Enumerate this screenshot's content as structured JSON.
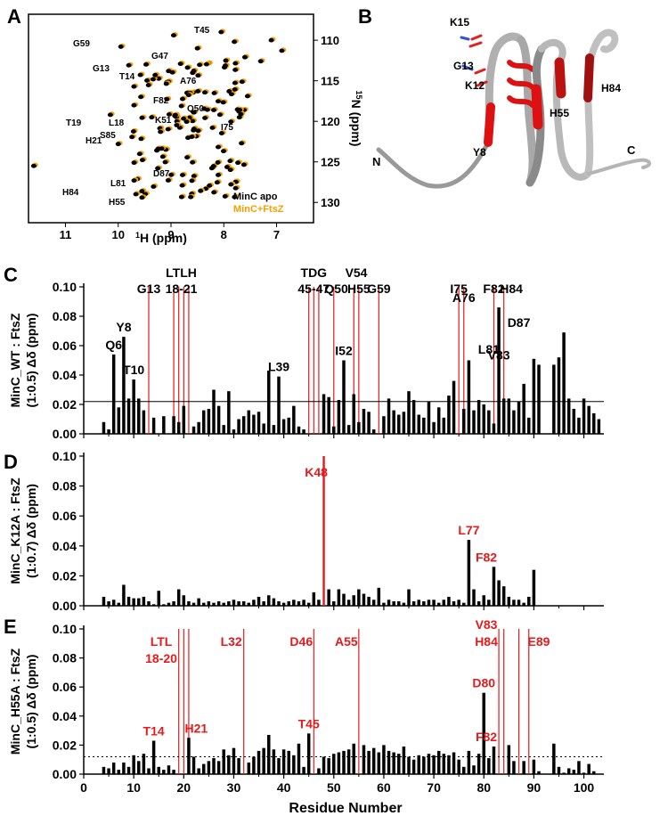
{
  "panels": {
    "A": {
      "letter": "A",
      "xlabel_sup": "1",
      "xlabel_rest": "H (ppm)",
      "ylabel_sup": "15",
      "ylabel_rest": "N (ppm)",
      "x_ticks": [
        "11",
        "10",
        "9",
        "8",
        "7"
      ],
      "y_ticks": [
        "110",
        "115",
        "120",
        "125",
        "130"
      ],
      "legend": [
        "MinC apo",
        "MinC+FtsZ"
      ],
      "colors": {
        "apo": "#000000",
        "ftsz": "#f5a000"
      },
      "labels": [
        "T45",
        "G59",
        "G47",
        "G13",
        "T14",
        "A76",
        "F82",
        "Q50",
        "T19",
        "L18",
        "K51",
        "I75",
        "S85",
        "H21",
        "D87",
        "L81",
        "H84",
        "H55"
      ]
    },
    "B": {
      "letter": "B",
      "labels": [
        "K15",
        "G13",
        "K12",
        "H84",
        "H55",
        "Y8",
        "N",
        "C"
      ]
    }
  },
  "chart_data": [
    {
      "type": "bar",
      "panel": "C",
      "ylabel_lines": [
        "MinC_WT : FtsZ",
        "(1:0.5) Δδ (ppm)"
      ],
      "ylim": [
        0,
        0.1
      ],
      "yticks": [
        "0.00",
        "0.02",
        "0.04",
        "0.06",
        "0.08",
        "0.10"
      ],
      "threshold": 0.022,
      "threshold_style": "solid",
      "residues": [
        4,
        5,
        6,
        7,
        8,
        9,
        10,
        11,
        12,
        14,
        16,
        18,
        19,
        20,
        22,
        23,
        24,
        25,
        26,
        27,
        28,
        29,
        30,
        31,
        32,
        33,
        34,
        35,
        36,
        37,
        38,
        39,
        40,
        41,
        42,
        43,
        44,
        48,
        49,
        50,
        51,
        52,
        53,
        54,
        55,
        56,
        57,
        58,
        60,
        61,
        62,
        63,
        64,
        65,
        66,
        67,
        68,
        69,
        70,
        71,
        72,
        73,
        74,
        76,
        77,
        78,
        79,
        80,
        81,
        82,
        83,
        84,
        85,
        86,
        87,
        88,
        89,
        90,
        91,
        94,
        95,
        96,
        97,
        98,
        99,
        100,
        101,
        102,
        103
      ],
      "values": [
        0.008,
        0.003,
        0.054,
        0.018,
        0.066,
        0.024,
        0.037,
        0.024,
        0.016,
        0.011,
        0.012,
        0.012,
        0.008,
        0.019,
        0.005,
        0.008,
        0.016,
        0.017,
        0.03,
        0.019,
        0.006,
        0.029,
        0.003,
        0.01,
        0.012,
        0.016,
        0.013,
        0.015,
        0.007,
        0.043,
        0.006,
        0.039,
        0.01,
        0.011,
        0.019,
        0.005,
        0.003,
        0.027,
        0.025,
        0.005,
        0.023,
        0.05,
        0.006,
        0.027,
        0.008,
        0.017,
        0.015,
        0.003,
        0.012,
        0.024,
        0.016,
        0.013,
        0.015,
        0.029,
        0.023,
        0.013,
        0.011,
        0.022,
        0.008,
        0.018,
        0.011,
        0.026,
        0.036,
        0.017,
        0.05,
        0.016,
        0.023,
        0.02,
        0.016,
        0.007,
        0.086,
        0.024,
        0.024,
        0.016,
        0.022,
        0.034,
        0.011,
        0.051,
        0.047,
        0.047,
        0.052,
        0.069,
        0.024,
        0.017,
        0.011,
        0.024,
        0.019,
        0.014,
        0.01,
        0.002,
        0.003
      ],
      "red_lines": [
        13,
        18,
        19,
        20,
        21,
        45,
        46,
        47,
        50,
        54,
        55,
        59,
        75,
        76,
        82,
        84
      ],
      "annotations": [
        {
          "text": "G13",
          "x": 13,
          "row": 0
        },
        {
          "text": "LTLH",
          "x": 19.5,
          "row": 1
        },
        {
          "text": "18-21",
          "x": 19.5,
          "row": 0
        },
        {
          "text": "TDG",
          "x": 46,
          "row": 1
        },
        {
          "text": "45-47",
          "x": 46,
          "row": 0
        },
        {
          "text": "Q50",
          "x": 50.5,
          "row": 0
        },
        {
          "text": "V54",
          "x": 54.5,
          "row": 1
        },
        {
          "text": "H55",
          "x": 55,
          "row": 0
        },
        {
          "text": "G59",
          "x": 59,
          "row": 0
        },
        {
          "text": "I75",
          "x": 75,
          "row": 0
        },
        {
          "text": "F82",
          "x": 82,
          "row": 0
        },
        {
          "text": "H84",
          "x": 85.5,
          "row": 0
        }
      ],
      "bar_labels": [
        {
          "text": "Q6",
          "x": 6,
          "y": 0.054
        },
        {
          "text": "Y8",
          "x": 8,
          "y": 0.066
        },
        {
          "text": "T10",
          "x": 10,
          "y": 0.037
        },
        {
          "text": "L39",
          "x": 39,
          "y": 0.039
        },
        {
          "text": "I52",
          "x": 52,
          "y": 0.05
        },
        {
          "text": "A76",
          "x": 76,
          "y": 0.086
        },
        {
          "text": "L81",
          "x": 81,
          "y": 0.051
        },
        {
          "text": "V83",
          "x": 83,
          "y": 0.047
        },
        {
          "text": "D87",
          "x": 87,
          "y": 0.069
        }
      ]
    },
    {
      "type": "bar",
      "panel": "D",
      "ylabel_lines": [
        "MinC_K12A : FtsZ",
        "(1:0.7) Δδ (ppm)"
      ],
      "ylim": [
        0,
        0.1
      ],
      "yticks": [
        "0.00",
        "0.02",
        "0.04",
        "0.06",
        "0.08",
        "0.10"
      ],
      "threshold": null,
      "residues": [
        4,
        5,
        6,
        7,
        8,
        9,
        10,
        11,
        12,
        13,
        14,
        15,
        16,
        17,
        18,
        19,
        20,
        21,
        22,
        23,
        24,
        25,
        26,
        27,
        28,
        29,
        30,
        31,
        32,
        33,
        34,
        35,
        36,
        37,
        38,
        39,
        40,
        41,
        42,
        43,
        44,
        45,
        46,
        47,
        49,
        50,
        51,
        52,
        53,
        54,
        55,
        56,
        57,
        58,
        59,
        60,
        61,
        62,
        63,
        64,
        65,
        66,
        67,
        68,
        69,
        70,
        71,
        72,
        73,
        74,
        75,
        76,
        77,
        78,
        79,
        80,
        81,
        82,
        83,
        84,
        85,
        86,
        87,
        88,
        89,
        90
      ],
      "values": [
        0.006,
        0.003,
        0.004,
        0.002,
        0.014,
        0.006,
        0.005,
        0.005,
        0.006,
        0.003,
        0.001,
        0.01,
        0.001,
        0.002,
        0.003,
        0.011,
        0.007,
        0.003,
        0.002,
        0.005,
        0.002,
        0.003,
        0.002,
        0.003,
        0.002,
        0.003,
        0.004,
        0.003,
        0.003,
        0.002,
        0.004,
        0.006,
        0.003,
        0.007,
        0.005,
        0.003,
        0.002,
        0.003,
        0.004,
        0.003,
        0.004,
        0.002,
        0.009,
        0.004,
        0.011,
        0.003,
        0.011,
        0.008,
        0.004,
        0.007,
        0.011,
        0.008,
        0.006,
        0.004,
        0.012,
        0.002,
        0.004,
        0.003,
        0.003,
        0.002,
        0.011,
        0.003,
        0.004,
        0.003,
        0.004,
        0.004,
        0.002,
        0.004,
        0.006,
        0.003,
        0.004,
        0.002,
        0.044,
        0.011,
        0.003,
        0.007,
        0.004,
        0.026,
        0.017,
        0.013,
        0.006,
        0.004,
        0.004,
        0.002,
        0.006,
        0.024
      ],
      "red_lines": [
        48
      ],
      "annotations": [
        {
          "text": "K48",
          "x": 46.5,
          "row": 0
        }
      ],
      "bar_labels": [
        {
          "text": "L77",
          "x": 77,
          "y": 0.044,
          "color": "red"
        },
        {
          "text": "F82",
          "x": 80.5,
          "y": 0.026,
          "color": "red"
        }
      ]
    },
    {
      "type": "bar",
      "panel": "E",
      "ylabel_lines": [
        "MinC_H55A : FtsZ",
        "(1:0.5) Δδ (ppm)"
      ],
      "ylim": [
        0,
        0.1
      ],
      "yticks": [
        "0.00",
        "0.02",
        "0.04",
        "0.06",
        "0.08",
        "0.10"
      ],
      "threshold": 0.012,
      "threshold_style": "dotted",
      "xlabel": "Residue Number",
      "xticks": [
        "0",
        "10",
        "20",
        "30",
        "40",
        "50",
        "60",
        "70",
        "80",
        "90",
        "100"
      ],
      "residues": [
        4,
        5,
        6,
        7,
        8,
        9,
        10,
        11,
        12,
        13,
        14,
        15,
        16,
        17,
        18,
        21,
        22,
        23,
        24,
        25,
        26,
        27,
        28,
        29,
        30,
        31,
        33,
        34,
        35,
        36,
        37,
        38,
        39,
        40,
        41,
        42,
        43,
        44,
        45,
        47,
        48,
        49,
        50,
        51,
        52,
        53,
        54,
        56,
        57,
        58,
        59,
        60,
        61,
        62,
        63,
        64,
        65,
        66,
        67,
        68,
        69,
        70,
        71,
        72,
        73,
        74,
        75,
        76,
        77,
        78,
        79,
        80,
        81,
        82,
        85,
        86,
        88,
        90,
        91,
        94,
        95,
        96,
        97,
        98,
        99,
        100,
        101,
        102
      ],
      "values": [
        0.005,
        0.004,
        0.008,
        0.003,
        0.008,
        0.005,
        0.013,
        0.009,
        0.014,
        0.004,
        0.023,
        0.005,
        0.003,
        0.006,
        0.003,
        0.025,
        0.012,
        0.004,
        0.007,
        0.009,
        0.011,
        0.009,
        0.017,
        0.013,
        0.018,
        0.011,
        0.008,
        0.012,
        0.016,
        0.018,
        0.027,
        0.017,
        0.011,
        0.017,
        0.016,
        0.013,
        0.021,
        0.005,
        0.028,
        0.004,
        0.012,
        0.011,
        0.014,
        0.015,
        0.016,
        0.017,
        0.021,
        0.02,
        0.016,
        0.018,
        0.015,
        0.02,
        0.016,
        0.015,
        0.014,
        0.019,
        0.012,
        0.01,
        0.013,
        0.012,
        0.014,
        0.013,
        0.016,
        0.014,
        0.013,
        0.015,
        0.01,
        0.005,
        0.016,
        0.006,
        0.014,
        0.056,
        0.011,
        0.019,
        0.02,
        0.009,
        0.009,
        0.01,
        0.002,
        0.021,
        0.005,
        0.001,
        0.004,
        0.003,
        0.009,
        0.001,
        0.007,
        0.002
      ],
      "red_lines": [
        19,
        20,
        21,
        32,
        46,
        55,
        83,
        84,
        87,
        89
      ],
      "annotations": [
        {
          "text": "LTL",
          "x": 15.5,
          "row": 1
        },
        {
          "text": "18-20",
          "x": 15.5,
          "row": 0
        },
        {
          "text": "L32",
          "x": 29.5,
          "row": 1
        },
        {
          "text": "D46",
          "x": 43.5,
          "row": 1
        },
        {
          "text": "A55",
          "x": 52.5,
          "row": 1
        },
        {
          "text": "V83",
          "x": 80.5,
          "row": 2
        },
        {
          "text": "H84",
          "x": 80.5,
          "row": 1
        },
        {
          "text": "E89",
          "x": 91,
          "row": 1
        }
      ],
      "bar_labels": [
        {
          "text": "T14",
          "x": 14,
          "y": 0.023,
          "color": "red"
        },
        {
          "text": "H21",
          "x": 22.5,
          "y": 0.025,
          "color": "red"
        },
        {
          "text": "T45",
          "x": 45,
          "y": 0.028,
          "color": "red"
        },
        {
          "text": "D80",
          "x": 80,
          "y": 0.056,
          "color": "red"
        },
        {
          "text": "F82",
          "x": 80.5,
          "y": 0.019,
          "color": "red"
        }
      ]
    }
  ]
}
